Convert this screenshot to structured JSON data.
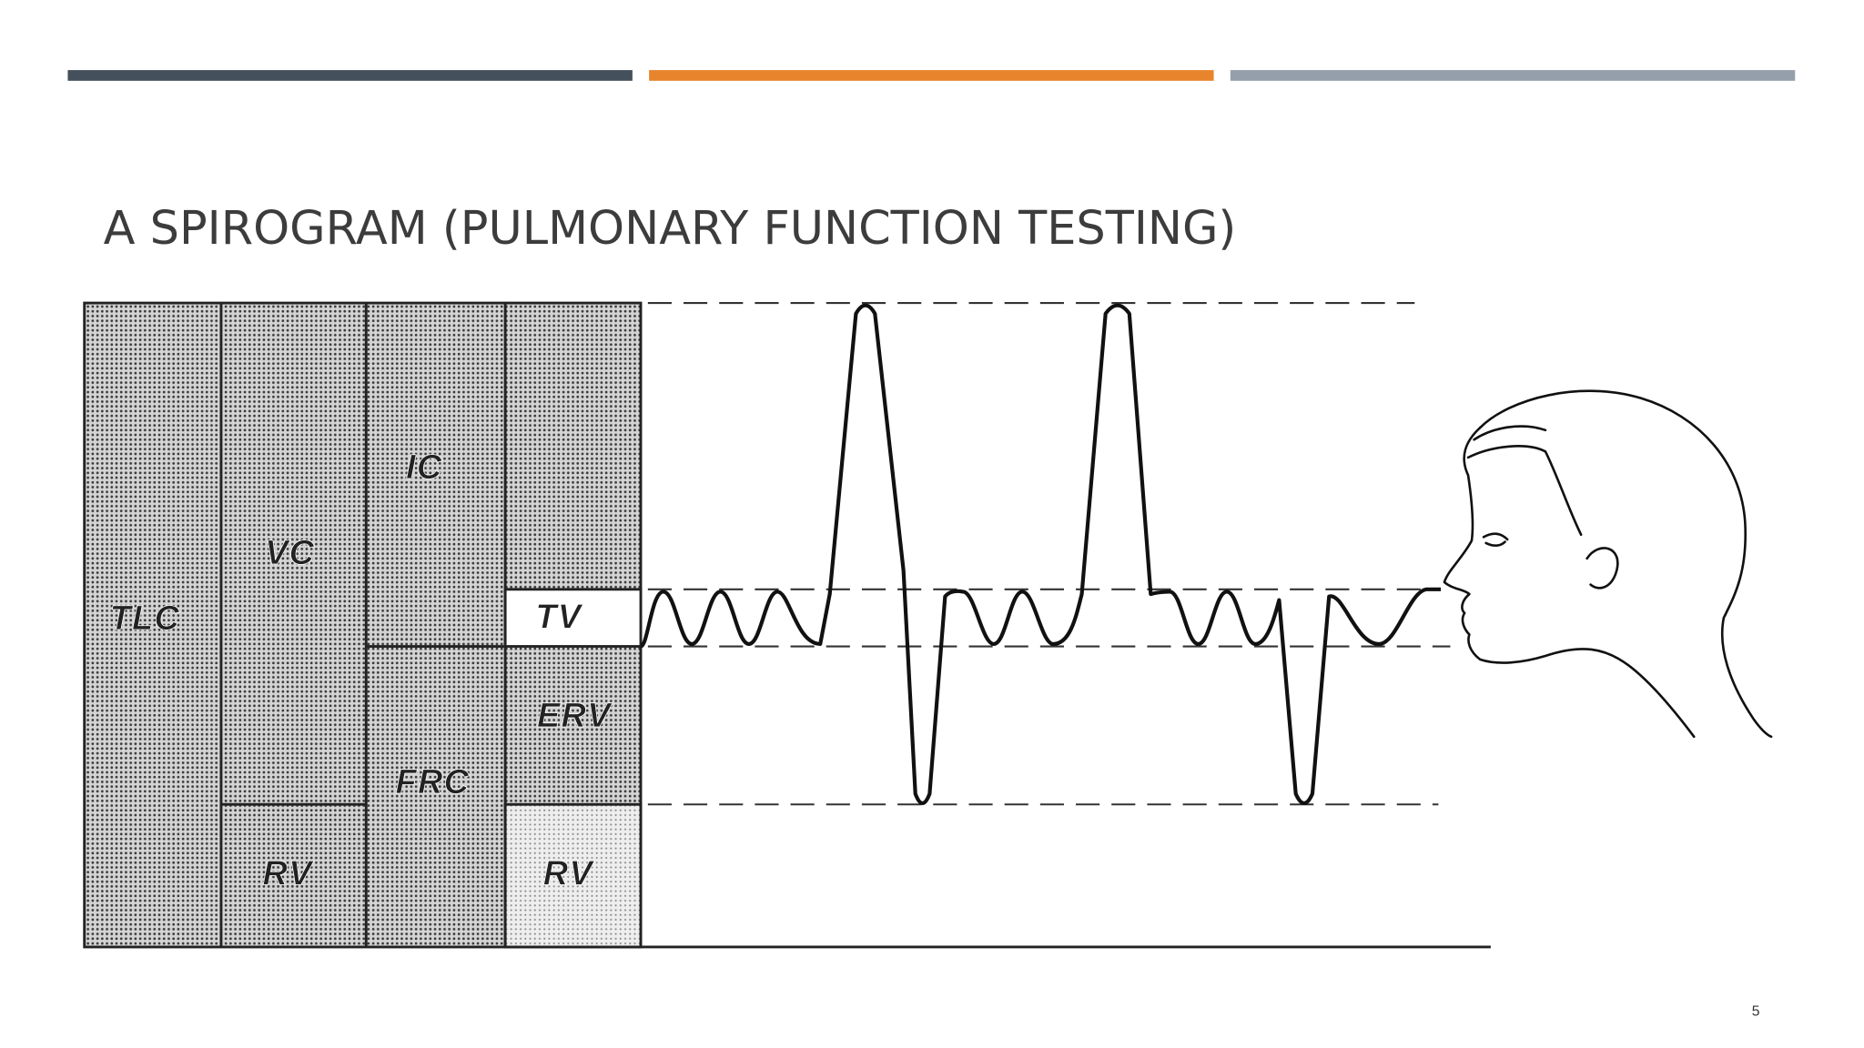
{
  "header": {
    "title": "A SPIROGRAM (PULMONARY FUNCTION TESTING)"
  },
  "diagram": {
    "labels": [
      "TLC",
      "VC",
      "IC",
      "TV",
      "ERV",
      "FRC",
      "RV",
      "RV"
    ]
  },
  "footer": {
    "page_number": 5
  }
}
